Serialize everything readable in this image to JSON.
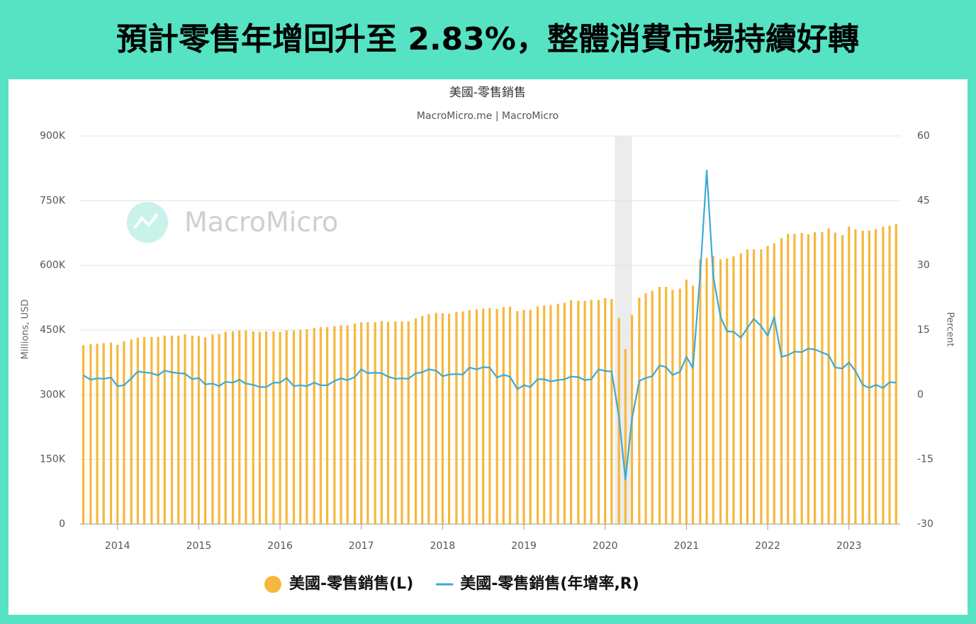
{
  "header": {
    "title": "預計零售年增回升至 2.83%，整體消費市場持續好轉"
  },
  "chart_data": {
    "type": "combo",
    "title": "美國-零售銷售",
    "subtitle": "MacroMicro.me | MacroMicro",
    "watermark": "MacroMicro",
    "ylabel": "Millions, USD",
    "y2label": "Percent",
    "xlim": [
      2013.54,
      2023.63
    ],
    "xticks": [
      2014,
      2015,
      2016,
      2017,
      2018,
      2019,
      2020,
      2021,
      2022,
      2023
    ],
    "ylim": [
      0,
      900000
    ],
    "yticks": [
      {
        "value": 0,
        "label": "0"
      },
      {
        "value": 150000,
        "label": "150K"
      },
      {
        "value": 300000,
        "label": "300K"
      },
      {
        "value": 450000,
        "label": "450K"
      },
      {
        "value": 600000,
        "label": "600K"
      },
      {
        "value": 750000,
        "label": "750K"
      },
      {
        "value": 900000,
        "label": "900K"
      }
    ],
    "y2lim": [
      -30,
      60
    ],
    "y2ticks": [
      -30,
      -15,
      0,
      15,
      30,
      45,
      60
    ],
    "grid": true,
    "legend": "bottom",
    "shaded_range": [
      2020.12,
      2020.33
    ],
    "x": [
      2013.58,
      2013.67,
      2013.75,
      2013.83,
      2013.92,
      2014,
      2014.08,
      2014.17,
      2014.25,
      2014.33,
      2014.42,
      2014.5,
      2014.58,
      2014.67,
      2014.75,
      2014.83,
      2014.92,
      2015,
      2015.08,
      2015.17,
      2015.25,
      2015.33,
      2015.42,
      2015.5,
      2015.58,
      2015.67,
      2015.75,
      2015.83,
      2015.92,
      2016,
      2016.08,
      2016.17,
      2016.25,
      2016.33,
      2016.42,
      2016.5,
      2016.58,
      2016.67,
      2016.75,
      2016.83,
      2016.92,
      2017,
      2017.08,
      2017.17,
      2017.25,
      2017.33,
      2017.42,
      2017.5,
      2017.58,
      2017.67,
      2017.75,
      2017.83,
      2017.92,
      2018,
      2018.08,
      2018.17,
      2018.25,
      2018.33,
      2018.42,
      2018.5,
      2018.58,
      2018.67,
      2018.75,
      2018.83,
      2018.92,
      2019,
      2019.08,
      2019.17,
      2019.25,
      2019.33,
      2019.42,
      2019.5,
      2019.58,
      2019.67,
      2019.75,
      2019.83,
      2019.92,
      2020,
      2020.08,
      2020.17,
      2020.25,
      2020.33,
      2020.42,
      2020.5,
      2020.58,
      2020.67,
      2020.75,
      2020.83,
      2020.92,
      2021,
      2021.08,
      2021.17,
      2021.25,
      2021.33,
      2021.42,
      2021.5,
      2021.58,
      2021.67,
      2021.75,
      2021.83,
      2021.92,
      2022,
      2022.08,
      2022.17,
      2022.25,
      2022.33,
      2022.42,
      2022.5,
      2022.58,
      2022.67,
      2022.75,
      2022.83,
      2022.92,
      2023,
      2023.08,
      2023.17,
      2023.25,
      2023.33,
      2023.42,
      2023.5,
      2023.58
    ],
    "series": [
      {
        "name": "美國-零售銷售(L)",
        "type": "bar",
        "color": "#f5b83d",
        "values": [
          415000,
          417000,
          418000,
          420000,
          421000,
          416000,
          424000,
          428000,
          432000,
          434000,
          434000,
          434000,
          437000,
          437000,
          437000,
          440000,
          437000,
          436000,
          433000,
          440000,
          441000,
          446000,
          447000,
          449000,
          449000,
          447000,
          446000,
          447000,
          447000,
          446000,
          449000,
          449000,
          451000,
          452000,
          455000,
          457000,
          457000,
          459000,
          461000,
          461000,
          465000,
          468000,
          468000,
          468000,
          471000,
          469000,
          470000,
          470000,
          470000,
          477000,
          483000,
          487000,
          490000,
          489000,
          488000,
          492000,
          493000,
          496000,
          498000,
          500000,
          501000,
          499000,
          503000,
          504000,
          494000,
          497000,
          497000,
          505000,
          507000,
          508000,
          511000,
          513000,
          519000,
          518000,
          518000,
          520000,
          520000,
          524000,
          522000,
          478000,
          406000,
          485000,
          525000,
          535000,
          541000,
          550000,
          550000,
          543000,
          546000,
          567000,
          553000,
          614000,
          617000,
          622000,
          614000,
          616000,
          621000,
          628000,
          637000,
          637000,
          637000,
          645000,
          651000,
          663000,
          673000,
          673000,
          675000,
          672000,
          677000,
          677000,
          686000,
          676000,
          670000,
          690000,
          684000,
          680000,
          681000,
          684000,
          690000,
          692000,
          696000
        ]
      },
      {
        "name": "美國-零售銷售(年增率,R)",
        "type": "line",
        "axis": "y2",
        "color": "#3ba9d9",
        "values": [
          4.5,
          3.5,
          3.8,
          3.7,
          4.0,
          2.0,
          2.2,
          3.8,
          5.4,
          5.2,
          5.0,
          4.5,
          5.6,
          5.2,
          5.0,
          4.9,
          3.6,
          3.9,
          2.4,
          2.6,
          2.0,
          3.0,
          2.8,
          3.5,
          2.6,
          2.3,
          1.8,
          1.8,
          2.8,
          2.8,
          3.9,
          2.0,
          2.2,
          2.0,
          2.8,
          2.2,
          2.2,
          3.2,
          3.8,
          3.4,
          4.1,
          5.9,
          5.0,
          5.1,
          5.0,
          4.2,
          3.7,
          3.8,
          3.7,
          5.0,
          5.2,
          5.9,
          5.6,
          4.3,
          4.7,
          4.8,
          4.7,
          6.3,
          5.9,
          6.4,
          6.3,
          4.0,
          4.6,
          4.2,
          1.3,
          2.2,
          1.8,
          3.6,
          3.6,
          3.1,
          3.4,
          3.6,
          4.2,
          4.1,
          3.4,
          3.6,
          5.9,
          5.5,
          5.4,
          -5.0,
          -19.7,
          -5.6,
          3.2,
          3.9,
          4.3,
          6.8,
          6.4,
          4.6,
          5.3,
          8.8,
          6.2,
          28.0,
          52.0,
          27.5,
          18.0,
          14.7,
          14.6,
          13.2,
          15.5,
          17.6,
          15.9,
          13.7,
          18.0,
          8.8,
          9.2,
          10.0,
          9.9,
          10.7,
          10.5,
          9.8,
          9.2,
          6.3,
          6.1,
          7.5,
          5.5,
          2.3,
          1.6,
          2.3,
          1.6,
          2.9,
          2.8
        ]
      }
    ]
  }
}
